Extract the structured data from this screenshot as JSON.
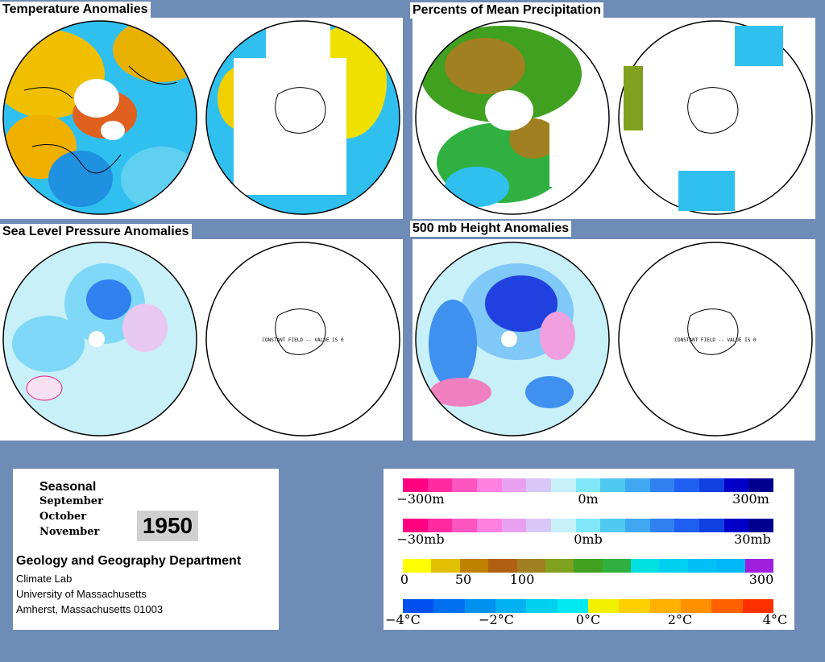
{
  "panels": {
    "temperature": {
      "title": "Temperature Anomalies"
    },
    "precipitation": {
      "title": "Percents of Mean Precipitation"
    },
    "slp": {
      "title": "Sea Level Pressure Anomalies",
      "sh_note": "CONSTANT FIELD -- VALUE IS 0"
    },
    "height": {
      "title": "500 mb Height Anomalies",
      "sh_note": "CONSTANT FIELD -- VALUE IS 0"
    }
  },
  "info": {
    "period": "Seasonal",
    "months": [
      "September",
      "October",
      "November"
    ],
    "year": "1950",
    "department": "Geology and Geography Department",
    "lines": [
      "Climate Lab",
      "University of Massachusetts",
      "Amherst, Massachusetts 01003"
    ]
  },
  "legends": {
    "height": {
      "labels": [
        "−300m",
        "0m",
        "300m"
      ],
      "colors": [
        "#ff0080",
        "#ff2aa0",
        "#ff55c0",
        "#ff80e0",
        "#e8a0f0",
        "#d8c8f8",
        "#c8f0f8",
        "#80e8f8",
        "#50c8f0",
        "#40a8f0",
        "#3080f0",
        "#2060f0",
        "#1040e0",
        "#0000c8",
        "#000090"
      ]
    },
    "slp": {
      "labels": [
        "−30mb",
        "0mb",
        "30mb"
      ],
      "colors": [
        "#ff0080",
        "#ff2aa0",
        "#ff55c0",
        "#ff80e0",
        "#e8a0f0",
        "#d8c8f8",
        "#c8f0f8",
        "#80e8f8",
        "#50c8f0",
        "#40a8f0",
        "#3080f0",
        "#2060f0",
        "#1040e0",
        "#0000c8",
        "#000090"
      ]
    },
    "precip": {
      "labels": [
        "0",
        "50",
        "100",
        "300"
      ],
      "colors": [
        "#ffff00",
        "#e0c000",
        "#c08000",
        "#b06010",
        "#a08020",
        "#80a020",
        "#40a020",
        "#30b040",
        "#00e0e0",
        "#00d0f0",
        "#00c0f8",
        "#00b8f8",
        "#a020e0"
      ]
    },
    "temp": {
      "labels": [
        "−4°C",
        "−2°C",
        "0°C",
        "2°C",
        "4°C"
      ],
      "colors": [
        "#0050f0",
        "#0070f0",
        "#0090f0",
        "#00b0f0",
        "#00d0f0",
        "#00e8f0",
        "#f0f000",
        "#ffd000",
        "#ffb000",
        "#ff9000",
        "#ff6000",
        "#ff3000"
      ]
    }
  }
}
